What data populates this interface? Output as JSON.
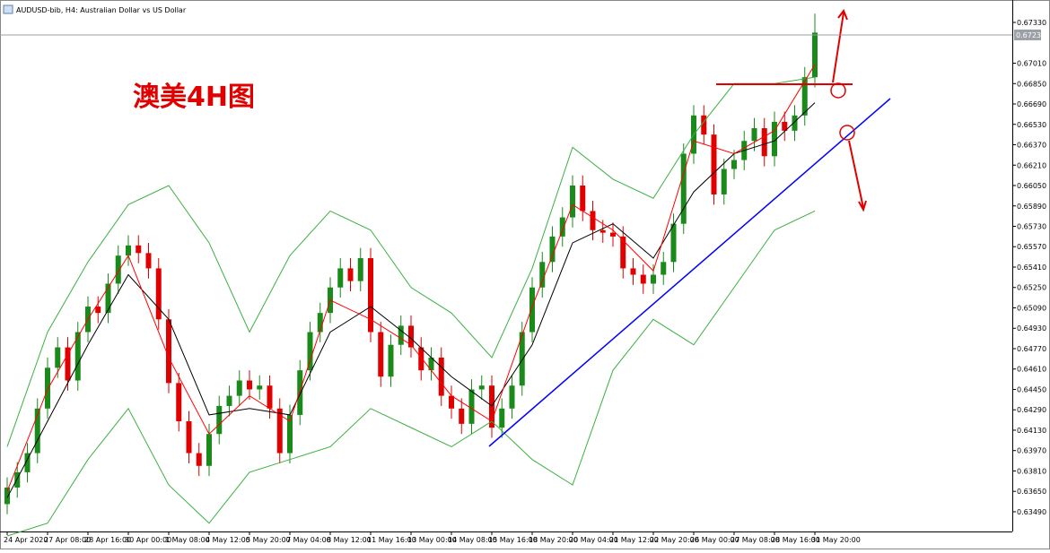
{
  "chart_data": {
    "type": "candlestick",
    "title": "AUDUSD-bib, H4:  Australian Dollar vs US Dollar",
    "annotation": "澳美4H图",
    "categories": [
      "24 Apr 2020",
      null,
      null,
      null,
      "27 Apr 08:00",
      null,
      null,
      null,
      "28 Apr 16:00",
      null,
      null,
      null,
      "30 Apr 00:00",
      null,
      null,
      null,
      "1 May 08:00",
      null,
      null,
      null,
      "4 May 12:00",
      null,
      null,
      null,
      "5 May 20:00",
      null,
      null,
      null,
      "7 May 04:00",
      null,
      null,
      null,
      "8 May 12:00",
      null,
      null,
      null,
      "11 May 16:00",
      null,
      null,
      null,
      "13 May 00:00",
      null,
      null,
      null,
      "14 May 08:00",
      null,
      null,
      null,
      "15 May 16:00",
      null,
      null,
      null,
      "18 May 20:00",
      null,
      null,
      null,
      "20 May 04:00",
      null,
      null,
      null,
      "21 May 12:00",
      null,
      null,
      null,
      "22 May 20:00",
      null,
      null,
      null,
      "26 May 00:00",
      null,
      null,
      null,
      "27 May 08:00",
      null,
      null,
      null,
      "28 May 16:00",
      null,
      null,
      null,
      "31 May 20:00"
    ],
    "open": [
      0.6355,
      0.6368,
      0.638,
      0.6395,
      0.643,
      0.6462,
      0.6478,
      0.6452,
      0.649,
      0.651,
      0.6505,
      0.6528,
      0.655,
      0.6558,
      0.6552,
      0.654,
      0.65,
      0.645,
      0.642,
      0.6395,
      0.6385,
      0.641,
      0.6432,
      0.644,
      0.6452,
      0.6445,
      0.6448,
      0.643,
      0.6395,
      0.6425,
      0.646,
      0.649,
      0.6505,
      0.6525,
      0.654,
      0.653,
      0.6548,
      0.649,
      0.6455,
      0.648,
      0.6495,
      0.6478,
      0.646,
      0.647,
      0.644,
      0.643,
      0.6418,
      0.6445,
      0.6448,
      0.6415,
      0.643,
      0.6448,
      0.649,
      0.6525,
      0.6545,
      0.6565,
      0.658,
      0.6605,
      0.6585,
      0.657,
      0.6568,
      0.6565,
      0.654,
      0.6535,
      0.6528,
      0.6535,
      0.6545,
      0.6575,
      0.663,
      0.666,
      0.6645,
      0.6598,
      0.6618,
      0.6625,
      0.664,
      0.665,
      0.6628,
      0.6655,
      0.6648,
      0.666,
      0.669
    ],
    "high": [
      0.6376,
      0.6388,
      0.6403,
      0.6438,
      0.647,
      0.6486,
      0.6486,
      0.6498,
      0.6518,
      0.6518,
      0.6536,
      0.6558,
      0.6566,
      0.6566,
      0.656,
      0.6548,
      0.6508,
      0.6458,
      0.6428,
      0.6403,
      0.6418,
      0.644,
      0.6448,
      0.646,
      0.646,
      0.6456,
      0.6456,
      0.6438,
      0.6433,
      0.6468,
      0.6498,
      0.6513,
      0.6533,
      0.6548,
      0.6548,
      0.6556,
      0.6556,
      0.6498,
      0.6488,
      0.6503,
      0.6503,
      0.6486,
      0.6478,
      0.6478,
      0.6448,
      0.6438,
      0.6453,
      0.6456,
      0.6456,
      0.6438,
      0.6456,
      0.6498,
      0.6533,
      0.6553,
      0.6573,
      0.6588,
      0.6613,
      0.6613,
      0.6593,
      0.6578,
      0.6576,
      0.6573,
      0.6548,
      0.6543,
      0.6543,
      0.6553,
      0.6583,
      0.6638,
      0.6668,
      0.6668,
      0.6653,
      0.6626,
      0.6633,
      0.6648,
      0.6658,
      0.6658,
      0.6663,
      0.6663,
      0.6668,
      0.6698,
      0.674
    ],
    "low": [
      0.6347,
      0.636,
      0.6372,
      0.6387,
      0.6422,
      0.6454,
      0.6444,
      0.6444,
      0.6482,
      0.6497,
      0.6497,
      0.652,
      0.6542,
      0.6544,
      0.6532,
      0.6492,
      0.6442,
      0.6412,
      0.6387,
      0.6377,
      0.6377,
      0.6402,
      0.6424,
      0.6432,
      0.6437,
      0.6437,
      0.6422,
      0.6387,
      0.6387,
      0.6417,
      0.6452,
      0.6482,
      0.6497,
      0.6517,
      0.6522,
      0.6522,
      0.6482,
      0.6447,
      0.6447,
      0.6472,
      0.647,
      0.6452,
      0.6452,
      0.6432,
      0.6422,
      0.641,
      0.641,
      0.6437,
      0.6407,
      0.6407,
      0.6422,
      0.644,
      0.6482,
      0.6517,
      0.6537,
      0.6557,
      0.6572,
      0.6577,
      0.6562,
      0.656,
      0.6557,
      0.6532,
      0.6527,
      0.652,
      0.652,
      0.6527,
      0.6537,
      0.6567,
      0.6622,
      0.6637,
      0.659,
      0.659,
      0.661,
      0.6617,
      0.6632,
      0.662,
      0.662,
      0.664,
      0.664,
      0.6652,
      0.6682
    ],
    "close": [
      0.6368,
      0.638,
      0.6395,
      0.643,
      0.6462,
      0.6478,
      0.6452,
      0.649,
      0.651,
      0.6505,
      0.6528,
      0.655,
      0.6558,
      0.6552,
      0.654,
      0.65,
      0.645,
      0.642,
      0.6395,
      0.6385,
      0.641,
      0.6432,
      0.644,
      0.6452,
      0.6445,
      0.6448,
      0.643,
      0.6395,
      0.6425,
      0.646,
      0.649,
      0.6505,
      0.6525,
      0.654,
      0.653,
      0.6548,
      0.649,
      0.6455,
      0.648,
      0.6495,
      0.6478,
      0.646,
      0.647,
      0.644,
      0.643,
      0.6418,
      0.6445,
      0.6448,
      0.6415,
      0.643,
      0.6448,
      0.649,
      0.6525,
      0.6545,
      0.6565,
      0.658,
      0.6605,
      0.6585,
      0.657,
      0.6568,
      0.6565,
      0.654,
      0.6535,
      0.6528,
      0.6535,
      0.6545,
      0.6575,
      0.663,
      0.666,
      0.6645,
      0.6598,
      0.6618,
      0.6625,
      0.664,
      0.665,
      0.6628,
      0.6655,
      0.6648,
      0.666,
      0.669,
      0.6725
    ],
    "up_color": "#1a8a1a",
    "down_color": "#e00000",
    "indicators": [
      {
        "color": "#3cb043",
        "x": [
          0,
          4,
          8,
          12,
          16,
          20,
          24,
          28,
          32,
          36,
          40,
          44,
          48,
          52,
          56,
          60,
          64,
          68,
          72,
          76,
          80
        ],
        "values": [
          0.64,
          0.649,
          0.6545,
          0.659,
          0.6605,
          0.656,
          0.649,
          0.655,
          0.6585,
          0.657,
          0.6525,
          0.6505,
          0.647,
          0.654,
          0.6635,
          0.661,
          0.6595,
          0.6645,
          0.6685,
          0.6685,
          0.669
        ]
      },
      {
        "color": "#3cb043",
        "x": [
          0,
          4,
          8,
          12,
          16,
          20,
          24,
          28,
          32,
          36,
          40,
          44,
          48,
          52,
          56,
          60,
          64,
          68,
          72,
          76,
          80
        ],
        "values": [
          0.633,
          0.634,
          0.639,
          0.643,
          0.637,
          0.634,
          0.638,
          0.639,
          0.64,
          0.643,
          0.6415,
          0.64,
          0.642,
          0.639,
          0.637,
          0.646,
          0.65,
          0.648,
          0.6525,
          0.657,
          0.6585
        ]
      },
      {
        "color": "#000000",
        "x": [
          0,
          4,
          8,
          12,
          16,
          20,
          24,
          28,
          32,
          36,
          40,
          44,
          48,
          52,
          56,
          60,
          64,
          68,
          72,
          76,
          80
        ],
        "values": [
          0.636,
          0.642,
          0.648,
          0.6535,
          0.65,
          0.6425,
          0.643,
          0.6425,
          0.649,
          0.651,
          0.6485,
          0.6455,
          0.6432,
          0.648,
          0.656,
          0.6575,
          0.6548,
          0.66,
          0.663,
          0.664,
          0.667
        ]
      },
      {
        "color": "#ff0000",
        "x": [
          0,
          4,
          8,
          12,
          16,
          20,
          24,
          28,
          32,
          36,
          40,
          44,
          48,
          52,
          56,
          60,
          64,
          68,
          72,
          76,
          80
        ],
        "values": [
          0.6365,
          0.6445,
          0.65,
          0.655,
          0.647,
          0.641,
          0.644,
          0.642,
          0.6515,
          0.65,
          0.648,
          0.644,
          0.642,
          0.651,
          0.659,
          0.657,
          0.6538,
          0.664,
          0.663,
          0.6648,
          0.67
        ]
      }
    ],
    "current_price": 0.67232,
    "ylim": [
      0.63335,
      0.67506
    ],
    "yticks": [
      {
        "value": 0.6733,
        "label": "0.67330"
      },
      {
        "value": 0.6701,
        "label": "0.67010"
      },
      {
        "value": 0.6685,
        "label": "0.66850"
      },
      {
        "value": 0.6669,
        "label": "0.66690"
      },
      {
        "value": 0.6653,
        "label": "0.66530"
      },
      {
        "value": 0.6637,
        "label": "0.66370"
      },
      {
        "value": 0.6621,
        "label": "0.66210"
      },
      {
        "value": 0.6605,
        "label": "0.66050"
      },
      {
        "value": 0.6589,
        "label": "0.65890"
      },
      {
        "value": 0.6573,
        "label": "0.65730"
      },
      {
        "value": 0.6557,
        "label": "0.65570"
      },
      {
        "value": 0.6541,
        "label": "0.65410"
      },
      {
        "value": 0.6525,
        "label": "0.65250"
      },
      {
        "value": 0.6509,
        "label": "0.65090"
      },
      {
        "value": 0.6493,
        "label": "0.64930"
      },
      {
        "value": 0.6477,
        "label": "0.64770"
      },
      {
        "value": 0.6461,
        "label": "0.64610"
      },
      {
        "value": 0.6445,
        "label": "0.64450"
      },
      {
        "value": 0.6429,
        "label": "0.64290"
      },
      {
        "value": 0.6413,
        "label": "0.64130"
      },
      {
        "value": 0.6397,
        "label": "0.63970"
      },
      {
        "value": 0.6381,
        "label": "0.63810"
      },
      {
        "value": 0.6365,
        "label": "0.63650"
      },
      {
        "value": 0.6349,
        "label": "0.63490"
      }
    ]
  }
}
